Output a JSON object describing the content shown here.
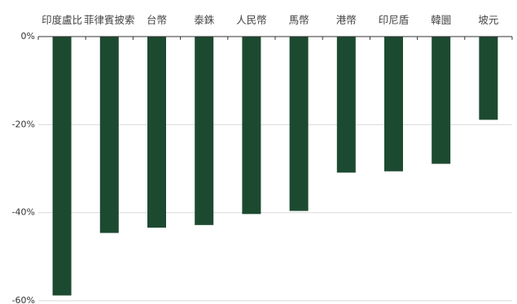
{
  "chart_data": {
    "type": "bar",
    "categories": [
      "印度盧比",
      "菲律賓披索",
      "台幣",
      "泰銖",
      "人民幣",
      "馬幣",
      "港幣",
      "印尼盾",
      "韓圜",
      "坡元"
    ],
    "values": [
      -58.8,
      -44.6,
      -43.4,
      -42.8,
      -40.3,
      -39.6,
      -30.9,
      -30.6,
      -28.9,
      -18.9
    ],
    "ylim": [
      -60,
      0
    ],
    "yticks": [
      0,
      -20,
      -40,
      -60
    ],
    "ytick_labels": [
      "0%",
      "-20%",
      "-40%",
      "-60%"
    ],
    "x_axis_position": "top",
    "grid": true,
    "colors": {
      "bar": "#1c4a30",
      "grid": "#d9d9d9",
      "axis": "#333333",
      "text": "#444444"
    }
  }
}
